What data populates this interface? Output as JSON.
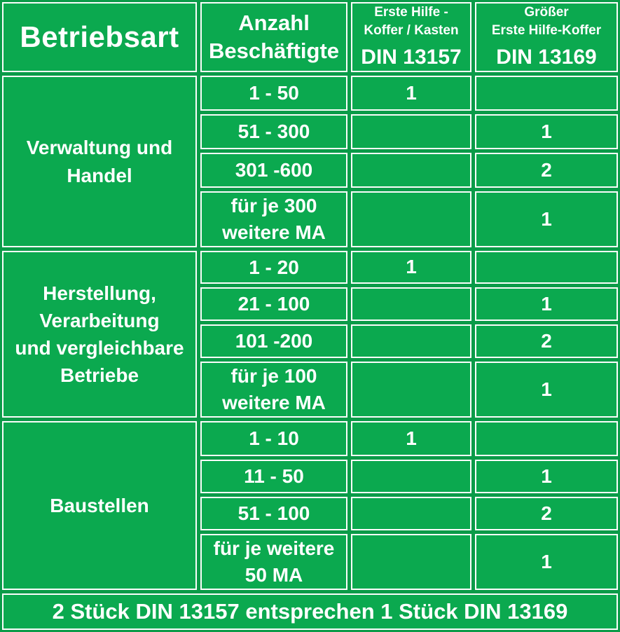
{
  "colors": {
    "cell_green": "#0ba94f",
    "background_green": "#0a9b48",
    "border_white": "#fbfdfb",
    "text_white": "#ffffff"
  },
  "header": {
    "betriebsart": "Betriebsart",
    "anzahl_lines": [
      "Anzahl",
      "Beschäftigte"
    ],
    "din13157_small_lines": [
      "Erste Hilfe -",
      "Koffer / Kasten"
    ],
    "din13157_label": "DIN 13157",
    "din13169_small_lines": [
      "Größer",
      "Erste Hilfe-Koffer"
    ],
    "din13169_label": "DIN 13169"
  },
  "sections": [
    {
      "label_lines": [
        "Verwaltung und",
        "Handel"
      ],
      "rows": [
        {
          "range_lines": [
            "1 - 50"
          ],
          "din13157": "1",
          "din13169": ""
        },
        {
          "range_lines": [
            "51 - 300"
          ],
          "din13157": "",
          "din13169": "1"
        },
        {
          "range_lines": [
            "301 -600"
          ],
          "din13157": "",
          "din13169": "2"
        },
        {
          "range_lines": [
            "für je 300",
            "weitere MA"
          ],
          "din13157": "",
          "din13169": "1"
        }
      ]
    },
    {
      "label_lines": [
        "Herstellung,",
        "Verarbeitung",
        "und vergleichbare",
        "Betriebe"
      ],
      "rows": [
        {
          "range_lines": [
            "1 - 20"
          ],
          "din13157": "1",
          "din13169": ""
        },
        {
          "range_lines": [
            "21 - 100"
          ],
          "din13157": "",
          "din13169": "1"
        },
        {
          "range_lines": [
            "101 -200"
          ],
          "din13157": "",
          "din13169": "2"
        },
        {
          "range_lines": [
            "für je 100",
            "weitere MA"
          ],
          "din13157": "",
          "din13169": "1"
        }
      ]
    },
    {
      "label_lines": [
        "Baustellen"
      ],
      "rows": [
        {
          "range_lines": [
            "1 - 10"
          ],
          "din13157": "1",
          "din13169": ""
        },
        {
          "range_lines": [
            "11 - 50"
          ],
          "din13157": "",
          "din13169": "1"
        },
        {
          "range_lines": [
            "51 - 100"
          ],
          "din13157": "",
          "din13169": "2"
        },
        {
          "range_lines": [
            "für je weitere",
            "50 MA"
          ],
          "din13157": "",
          "din13169": "1"
        }
      ]
    }
  ],
  "footer": "2 Stück DIN 13157 entsprechen 1 Stück DIN 13169",
  "chart_data": {
    "type": "table",
    "title": "Erste-Hilfe-Koffer Bedarf nach Betriebsart",
    "columns": [
      "Betriebsart",
      "Anzahl Beschäftigte",
      "Erste Hilfe - Koffer / Kasten DIN 13157",
      "Größer Erste Hilfe-Koffer DIN 13169"
    ],
    "rows": [
      [
        "Verwaltung und Handel",
        "1 - 50",
        1,
        null
      ],
      [
        "Verwaltung und Handel",
        "51 - 300",
        null,
        1
      ],
      [
        "Verwaltung und Handel",
        "301 -600",
        null,
        2
      ],
      [
        "Verwaltung und Handel",
        "für je 300 weitere MA",
        null,
        1
      ],
      [
        "Herstellung, Verarbeitung und vergleichbare Betriebe",
        "1 - 20",
        1,
        null
      ],
      [
        "Herstellung, Verarbeitung und vergleichbare Betriebe",
        "21 - 100",
        null,
        1
      ],
      [
        "Herstellung, Verarbeitung und vergleichbare Betriebe",
        "101 -200",
        null,
        2
      ],
      [
        "Herstellung, Verarbeitung und vergleichbare Betriebe",
        "für je 100 weitere MA",
        null,
        1
      ],
      [
        "Baustellen",
        "1 - 10",
        1,
        null
      ],
      [
        "Baustellen",
        "11 - 50",
        null,
        1
      ],
      [
        "Baustellen",
        "51 - 100",
        null,
        2
      ],
      [
        "Baustellen",
        "für je weitere 50 MA",
        null,
        1
      ]
    ],
    "footer_note": "2 Stück DIN 13157 entsprechen 1 Stück DIN 13169",
    "layout": "first column cells merged per section; white cell borders on green background"
  }
}
